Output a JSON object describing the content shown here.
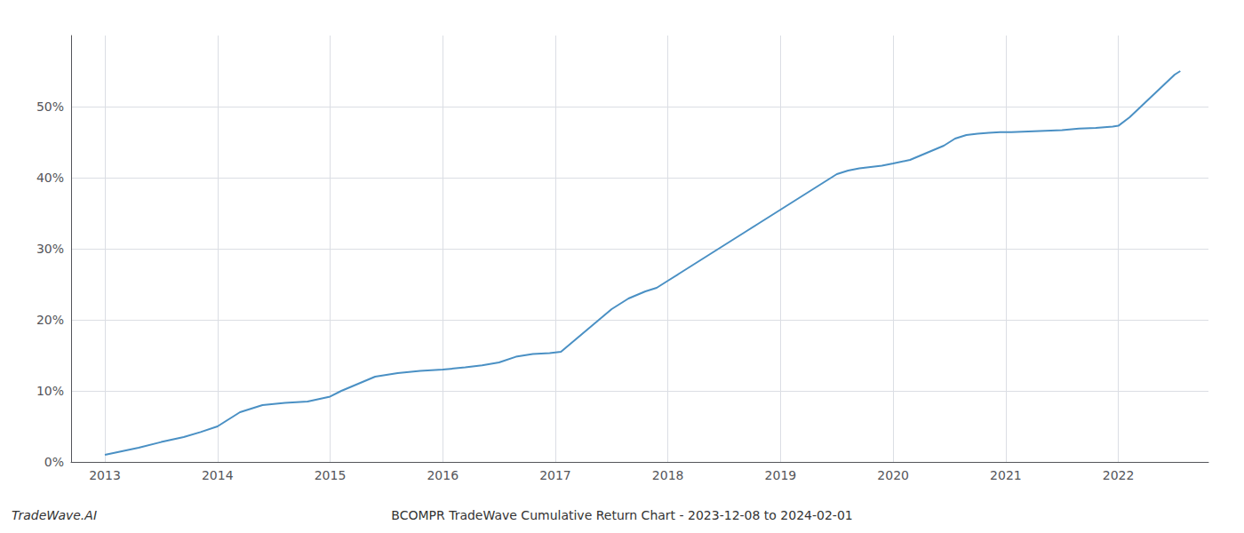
{
  "chart_data": {
    "type": "line",
    "title": "BCOMPR TradeWave Cumulative Return Chart - 2023-12-08 to 2024-02-01",
    "annotations": [
      "TradeWave.AI"
    ],
    "color": "#4a90c4",
    "x": [
      2013.0,
      2013.15,
      2013.3,
      2013.5,
      2013.7,
      2013.85,
      2014.0,
      2014.1,
      2014.2,
      2014.3,
      2014.4,
      2014.6,
      2014.8,
      2015.0,
      2015.1,
      2015.25,
      2015.4,
      2015.6,
      2015.8,
      2016.0,
      2016.2,
      2016.35,
      2016.5,
      2016.65,
      2016.8,
      2016.95,
      2017.05,
      2017.2,
      2017.35,
      2017.5,
      2017.65,
      2017.8,
      2017.9,
      2018.0,
      2018.1,
      2018.2,
      2018.3,
      2018.4,
      2018.5,
      2018.6,
      2018.7,
      2018.8,
      2018.9,
      2019.0,
      2019.1,
      2019.2,
      2019.3,
      2019.4,
      2019.5,
      2019.6,
      2019.7,
      2019.8,
      2019.9,
      2020.0,
      2020.15,
      2020.3,
      2020.45,
      2020.55,
      2020.65,
      2020.75,
      2020.85,
      2020.95,
      2021.05,
      2021.2,
      2021.35,
      2021.5,
      2021.65,
      2021.8,
      2021.95,
      2022.0,
      2022.1,
      2022.2,
      2022.3,
      2022.4,
      2022.5,
      2022.55
    ],
    "values": [
      1.0,
      1.5,
      2.0,
      2.8,
      3.5,
      4.2,
      5.0,
      6.0,
      7.0,
      7.5,
      8.0,
      8.3,
      8.5,
      9.2,
      10.0,
      11.0,
      12.0,
      12.5,
      12.8,
      13.0,
      13.3,
      13.6,
      14.0,
      14.8,
      15.2,
      15.3,
      15.5,
      17.5,
      19.5,
      21.5,
      23.0,
      24.0,
      24.5,
      25.5,
      26.5,
      27.5,
      28.5,
      29.5,
      30.5,
      31.5,
      32.5,
      33.5,
      34.5,
      35.5,
      36.5,
      37.5,
      38.5,
      39.5,
      40.5,
      41.0,
      41.3,
      41.5,
      41.7,
      42.0,
      42.5,
      43.5,
      44.5,
      45.5,
      46.0,
      46.2,
      46.3,
      46.4,
      46.4,
      46.5,
      46.6,
      46.7,
      46.9,
      47.0,
      47.2,
      47.3,
      48.5,
      50.0,
      51.5,
      53.0,
      54.5,
      55.0
    ],
    "xlim": [
      2012.7,
      2022.8
    ],
    "xticks": [
      2013,
      2014,
      2015,
      2016,
      2017,
      2018,
      2019,
      2020,
      2021,
      2022
    ],
    "ylim": [
      0,
      60
    ],
    "yticks": [
      {
        "value": 0,
        "label": "0%"
      },
      {
        "value": 10,
        "label": "10%"
      },
      {
        "value": 20,
        "label": "20%"
      },
      {
        "value": 30,
        "label": "30%"
      },
      {
        "value": 40,
        "label": "40%"
      },
      {
        "value": 50,
        "label": "50%"
      }
    ],
    "grid": true
  }
}
